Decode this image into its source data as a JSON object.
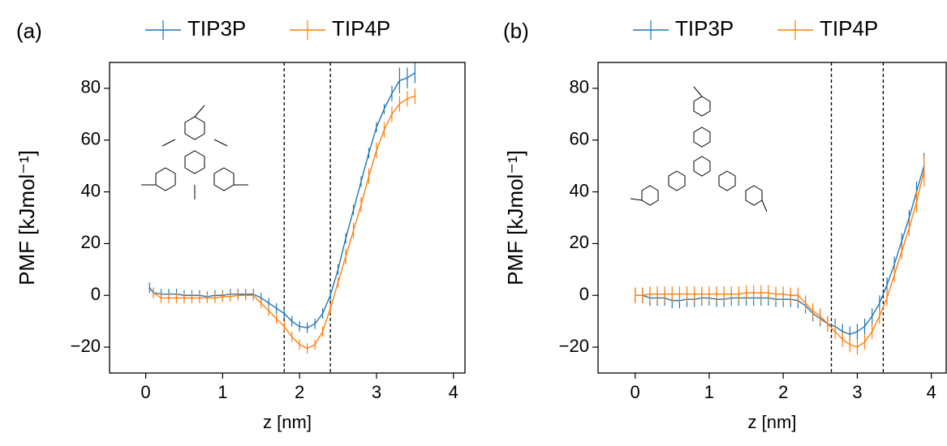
{
  "chart_data": [
    {
      "type": "line",
      "panel_label": "(a)",
      "xlabel": "z [nm]",
      "ylabel": "PMF [kJmol⁻¹]",
      "xlim": [
        -0.47,
        4.15
      ],
      "ylim": [
        -30,
        90
      ],
      "xticks": [
        0,
        1,
        2,
        3,
        4
      ],
      "yticks": [
        {
          "value": -20,
          "label": "−20"
        },
        0,
        20,
        40,
        60,
        80
      ],
      "vlines": [
        1.8,
        2.4
      ],
      "legend": "upper center",
      "series": [
        {
          "name": "TIP3P",
          "color": "#1f77b4",
          "x": [
            0.05,
            0.1,
            0.2,
            0.3,
            0.4,
            0.5,
            0.6,
            0.7,
            0.8,
            0.9,
            1.0,
            1.1,
            1.2,
            1.3,
            1.4,
            1.5,
            1.6,
            1.7,
            1.8,
            1.9,
            2.0,
            2.1,
            2.2,
            2.3,
            2.4,
            2.5,
            2.6,
            2.7,
            2.8,
            2.9,
            3.0,
            3.1,
            3.2,
            3.3,
            3.4,
            3.5
          ],
          "values": [
            3,
            1,
            0.5,
            0.5,
            0.5,
            0,
            0,
            0,
            -0.5,
            0,
            0,
            0.5,
            0.5,
            0.5,
            0.5,
            -1,
            -3,
            -5,
            -7,
            -10,
            -12,
            -12.5,
            -11,
            -7,
            0,
            10,
            22,
            33,
            44,
            55,
            65,
            72,
            78,
            83,
            84,
            86
          ],
          "errors": [
            2,
            2,
            2,
            2,
            2,
            2,
            2,
            2,
            2,
            2,
            2,
            2,
            2,
            2,
            2,
            2,
            2,
            2,
            2,
            2,
            2,
            2,
            2,
            2,
            2,
            2,
            2,
            2,
            2,
            2,
            2,
            2,
            3,
            5,
            4,
            4
          ]
        },
        {
          "name": "TIP4P",
          "color": "#ff7f0e",
          "x": [
            0.1,
            0.2,
            0.3,
            0.4,
            0.5,
            0.6,
            0.7,
            0.8,
            0.9,
            1.0,
            1.1,
            1.2,
            1.3,
            1.4,
            1.5,
            1.6,
            1.7,
            1.8,
            1.9,
            2.0,
            2.1,
            2.2,
            2.3,
            2.4,
            2.5,
            2.6,
            2.7,
            2.8,
            2.9,
            3.0,
            3.1,
            3.2,
            3.3,
            3.4,
            3.5
          ],
          "values": [
            1,
            -1,
            -1,
            -1,
            -1,
            -1,
            -1,
            -1,
            -1,
            -0.5,
            -0.5,
            0,
            0,
            0,
            -3,
            -6,
            -9,
            -12,
            -16,
            -19,
            -20.5,
            -19,
            -14,
            -5,
            5,
            15,
            25,
            35,
            46,
            56,
            64,
            70,
            74,
            76,
            77
          ],
          "errors": [
            2,
            2,
            2,
            2,
            2,
            2,
            2,
            2,
            2,
            2,
            2,
            2,
            2,
            2,
            2,
            2,
            2,
            2,
            2,
            2,
            2,
            2,
            2,
            2,
            2,
            3,
            3,
            3,
            3,
            3,
            3,
            3,
            3,
            3,
            3
          ]
        }
      ]
    },
    {
      "type": "line",
      "panel_label": "(b)",
      "xlabel": "z [nm]",
      "ylabel": "PMF [kJmol⁻¹]",
      "xlim": [
        -0.5,
        4.2
      ],
      "ylim": [
        -30,
        90
      ],
      "xticks": [
        0,
        1,
        2,
        3,
        4
      ],
      "yticks": [
        {
          "value": -20,
          "label": "−20"
        },
        0,
        20,
        40,
        60,
        80
      ],
      "vlines": [
        2.65,
        3.35
      ],
      "legend": "upper center",
      "series": [
        {
          "name": "TIP3P",
          "color": "#1f77b4",
          "x": [
            0,
            0.1,
            0.2,
            0.3,
            0.4,
            0.5,
            0.6,
            0.7,
            0.8,
            0.9,
            1.0,
            1.1,
            1.2,
            1.3,
            1.4,
            1.5,
            1.6,
            1.7,
            1.8,
            1.9,
            2.0,
            2.1,
            2.2,
            2.3,
            2.4,
            2.5,
            2.6,
            2.7,
            2.8,
            2.9,
            3.0,
            3.1,
            3.2,
            3.3,
            3.4,
            3.5,
            3.6,
            3.7,
            3.8,
            3.9
          ],
          "values": [
            0,
            0,
            -1,
            -1,
            -1,
            -2,
            -2,
            -1.5,
            -1.5,
            -1,
            -1,
            -1.5,
            -1.5,
            -1,
            -1,
            -1,
            -1,
            -1,
            -1,
            -1.5,
            -1.5,
            -1.5,
            -2,
            -4,
            -7,
            -9,
            -11,
            -12,
            -14,
            -15,
            -14,
            -12,
            -8,
            -3,
            4,
            12,
            21,
            30,
            40,
            50
          ],
          "errors": [
            3,
            3,
            3,
            3,
            3,
            3,
            3,
            3,
            3,
            3,
            3,
            3,
            3,
            3,
            3,
            3,
            3,
            3,
            3,
            3,
            3,
            3,
            3,
            3,
            3,
            3,
            3,
            3,
            3,
            3,
            3,
            3,
            3,
            3,
            3,
            3,
            3,
            3,
            4,
            5
          ]
        },
        {
          "name": "TIP4P",
          "color": "#ff7f0e",
          "x": [
            0,
            0.1,
            0.2,
            0.3,
            0.4,
            0.5,
            0.6,
            0.7,
            0.8,
            0.9,
            1.0,
            1.1,
            1.2,
            1.3,
            1.4,
            1.5,
            1.6,
            1.7,
            1.8,
            1.9,
            2.0,
            2.1,
            2.2,
            2.3,
            2.4,
            2.5,
            2.6,
            2.7,
            2.8,
            2.9,
            3.0,
            3.1,
            3.2,
            3.3,
            3.4,
            3.5,
            3.6,
            3.7,
            3.8,
            3.9
          ],
          "values": [
            0,
            0,
            0.5,
            0.5,
            0.5,
            0.5,
            0.5,
            0.5,
            0.5,
            0.5,
            0.5,
            0.5,
            0.5,
            0.5,
            0.5,
            1,
            1,
            1,
            1,
            0.5,
            0.5,
            0,
            0,
            -3,
            -6,
            -8,
            -11,
            -14,
            -17,
            -19,
            -20,
            -18,
            -14,
            -8,
            -1,
            8,
            17,
            26,
            36,
            48
          ],
          "errors": [
            3,
            3,
            3,
            3,
            3,
            3,
            3,
            3,
            3,
            3,
            3,
            3,
            3,
            3,
            3,
            3,
            3,
            3,
            3,
            3,
            3,
            3,
            3,
            3,
            3,
            3,
            3,
            3,
            3,
            3,
            3,
            3,
            3,
            3,
            3,
            3,
            3,
            3,
            4,
            6
          ]
        }
      ]
    }
  ]
}
